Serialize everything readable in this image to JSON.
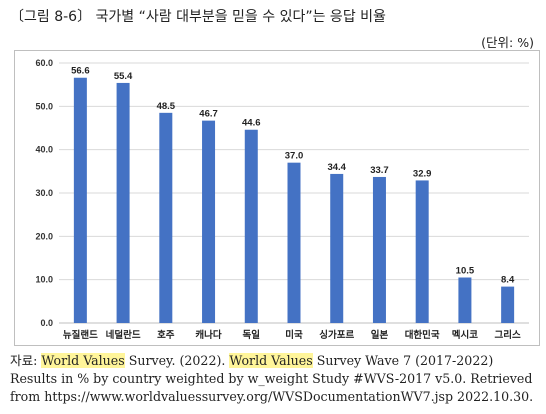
{
  "figure": {
    "title": "〔그림 8-6〕 국가별 “사람 대부분을 믿을 수 있다”는 응답 비율",
    "unit": "(단위: %)"
  },
  "source": {
    "prefix": "자료: ",
    "hl1": "World Values",
    "mid1": " Survey. (2022). ",
    "hl2": "World Values",
    "rest": " Survey Wave 7 (2017-2022) Results in % by country weighted by w_weight Study #WVS-2017 v5.0. Retrieved from https://www.worldvaluessurvey.org/WVSDocumentationWV7.jsp 2022.10.30."
  },
  "colors": {
    "bar": "#4472c4",
    "grid": "#d9d9d9",
    "axis": "#bfbfbf"
  },
  "chart_data": {
    "type": "bar",
    "categories": [
      "뉴질랜드",
      "네덜란드",
      "호주",
      "캐나다",
      "독일",
      "미국",
      "싱가포르",
      "일본",
      "대한민국",
      "멕시코",
      "그리스"
    ],
    "values": [
      56.6,
      55.4,
      48.5,
      46.7,
      44.6,
      37.0,
      34.4,
      33.7,
      32.9,
      10.5,
      8.4
    ],
    "value_labels": [
      "56.6",
      "55.4",
      "48.5",
      "46.7",
      "44.6",
      "37.0",
      "34.4",
      "33.7",
      "32.9",
      "10.5",
      "8.4"
    ],
    "yticks": [
      "0.0",
      "10.0",
      "20.0",
      "30.0",
      "40.0",
      "50.0",
      "60.0"
    ],
    "ylim": [
      0,
      60
    ],
    "grid": true,
    "legend": "none"
  }
}
